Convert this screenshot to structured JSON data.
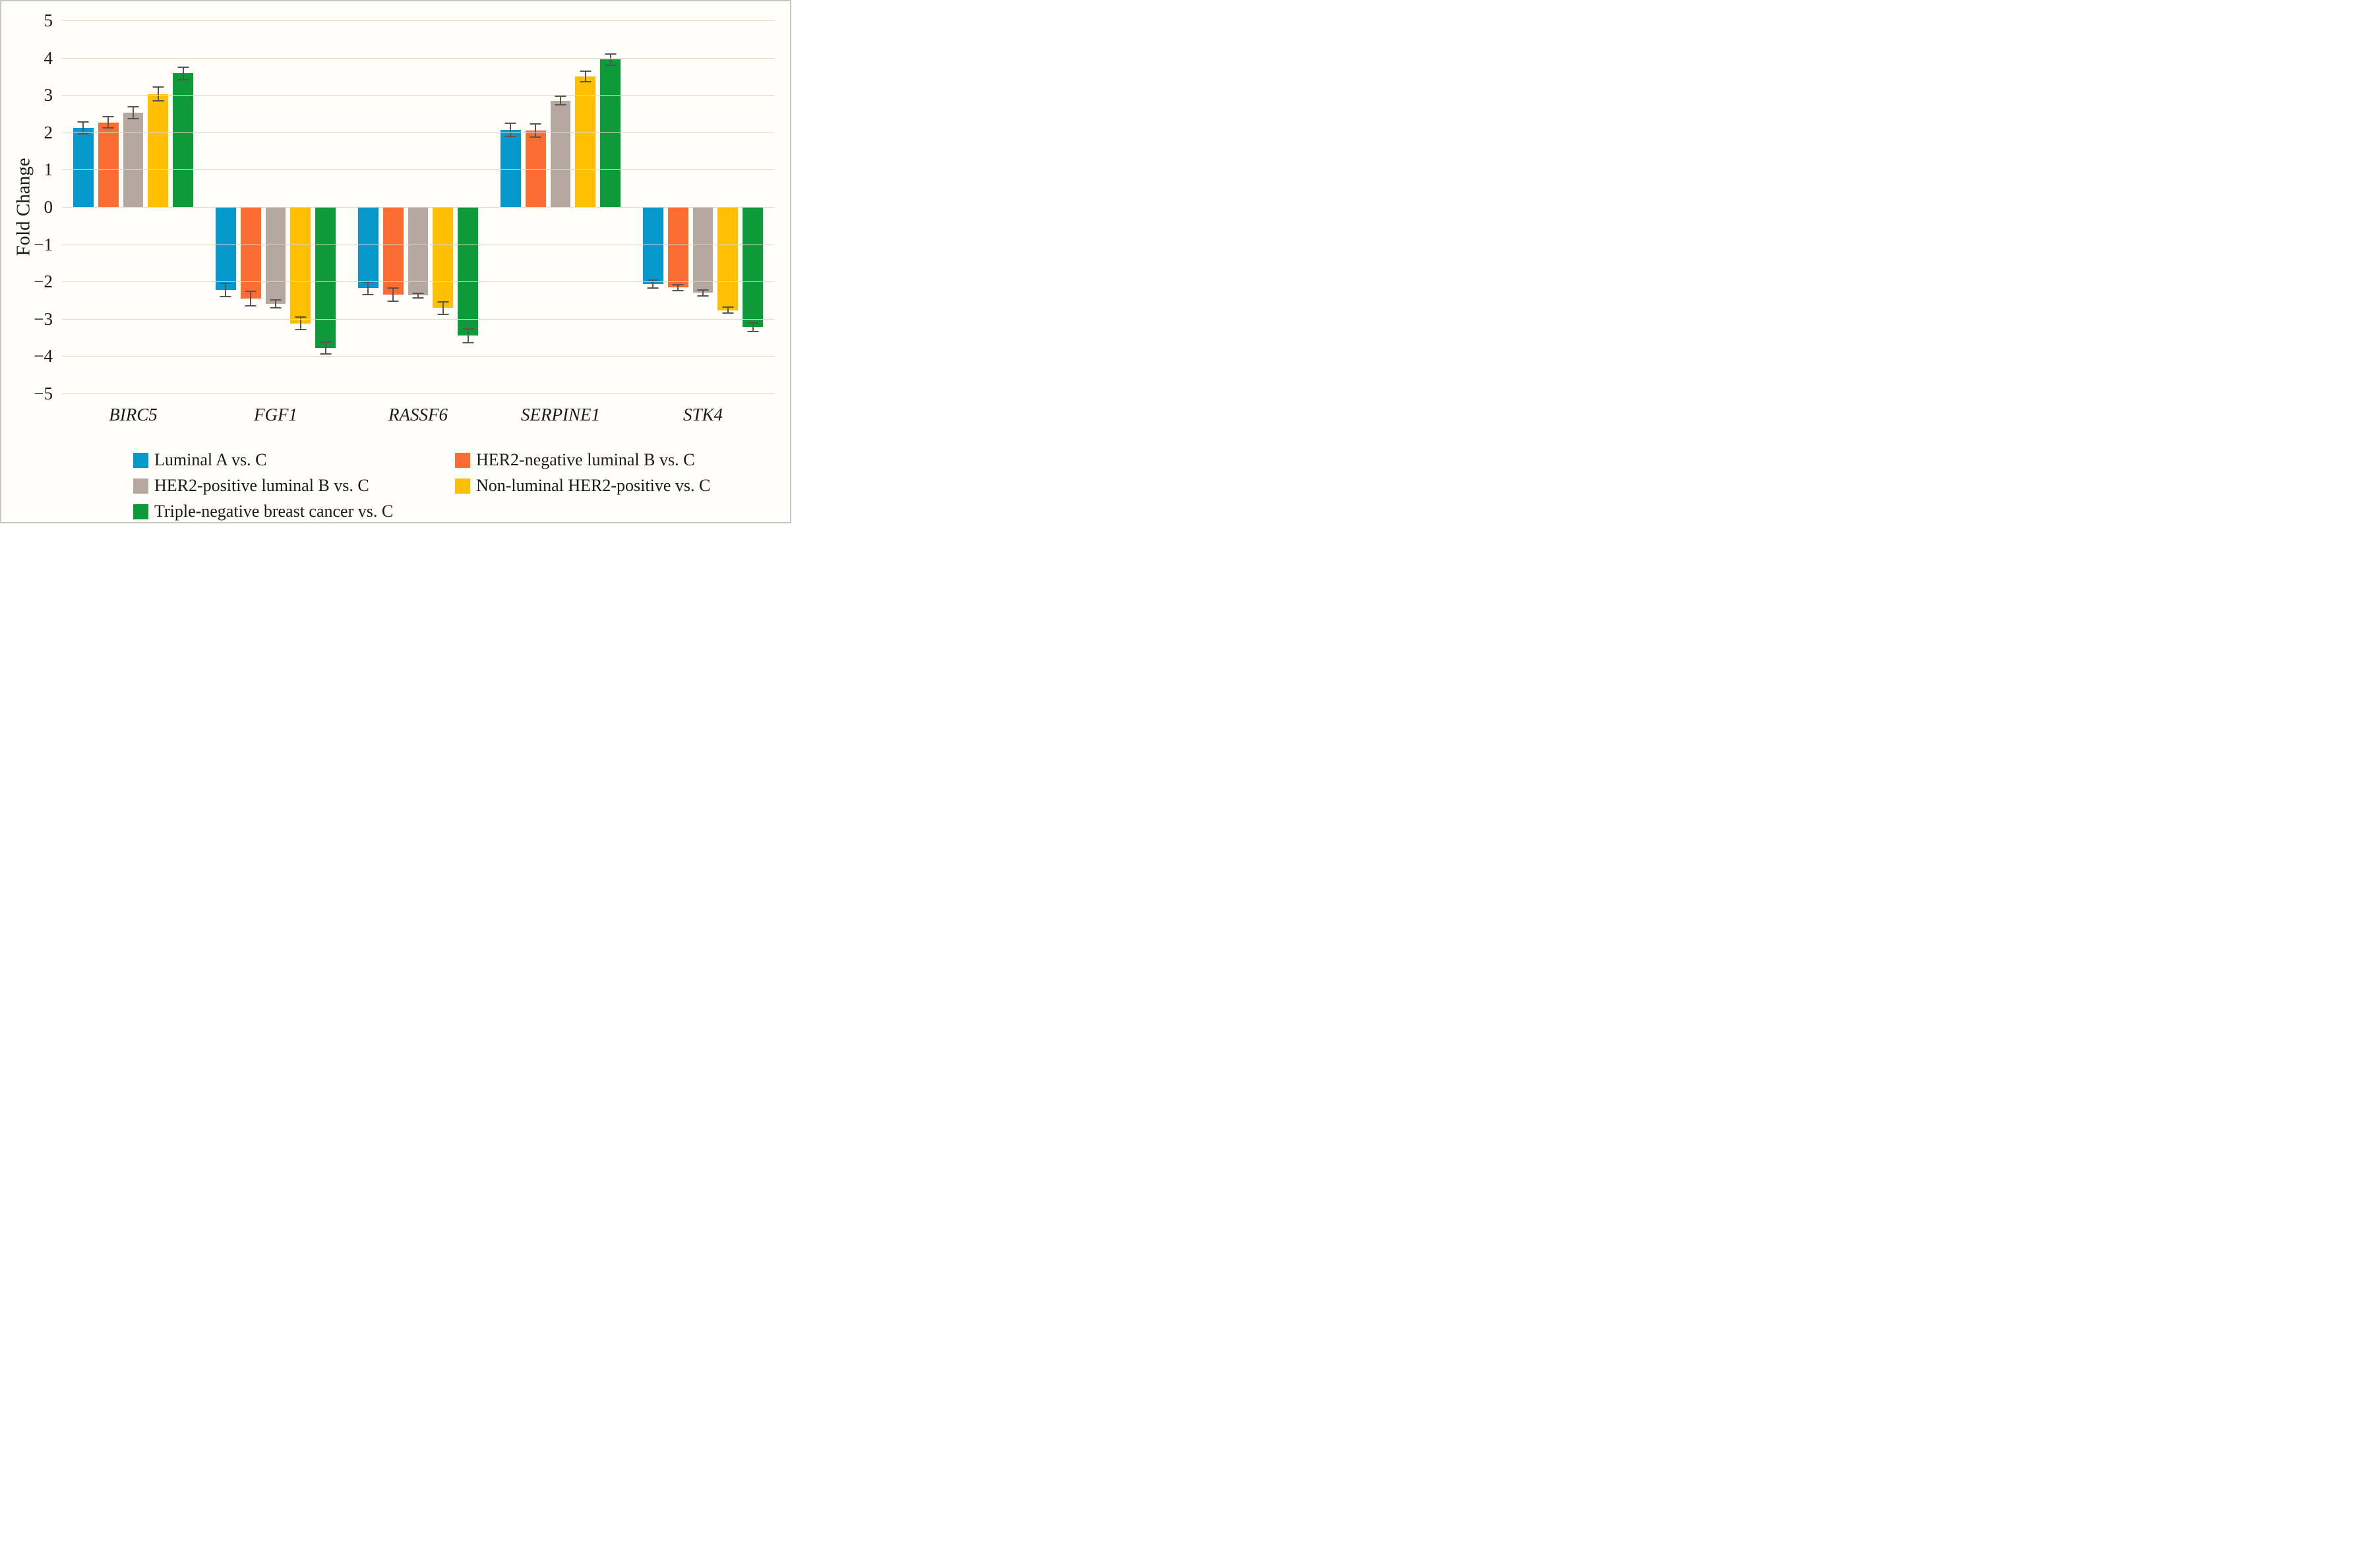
{
  "figure": {
    "y_axis_title": "Fold Change"
  },
  "chart_data": {
    "type": "bar",
    "title": "",
    "xlabel": "",
    "ylabel": "Fold Change",
    "ylim": [
      -5,
      5
    ],
    "yticks": [
      5,
      4,
      3,
      2,
      1,
      0,
      -1,
      -2,
      -3,
      -4,
      -5
    ],
    "ytick_labels": [
      "5",
      "4",
      "3",
      "2",
      "1",
      "0",
      "−1",
      "−2",
      "−3",
      "−4",
      "−5"
    ],
    "grid": true,
    "legend_position": "bottom",
    "categories": [
      "BIRC5",
      "FGF1",
      "RASSF6",
      "SERPINE1",
      "STK4"
    ],
    "series": [
      {
        "name": "Luminal A vs. C",
        "color": "#0598CB",
        "values": [
          2.12,
          -2.23,
          -2.18,
          2.07,
          -2.07
        ],
        "errors": [
          0.18,
          0.19,
          0.19,
          0.2,
          0.12
        ]
      },
      {
        "name": "HER2-negative luminal B vs. C",
        "color": "#FB6D33",
        "values": [
          2.27,
          -2.45,
          -2.35,
          2.05,
          -2.16
        ],
        "errors": [
          0.17,
          0.21,
          0.2,
          0.2,
          0.1
        ]
      },
      {
        "name": "HER2-positive luminal B vs. C",
        "color": "#B4A8A0",
        "values": [
          2.53,
          -2.6,
          -2.37,
          2.85,
          -2.3
        ],
        "errors": [
          0.18,
          0.12,
          0.08,
          0.13,
          0.1
        ]
      },
      {
        "name": "Non-luminal HER2-positive vs. C",
        "color": "#FFC003",
        "values": [
          3.03,
          -3.12,
          -2.71,
          3.5,
          -2.77
        ],
        "errors": [
          0.2,
          0.19,
          0.18,
          0.16,
          0.1
        ]
      },
      {
        "name": "Triple-negative breast cancer vs. C",
        "color": "#0D9A38",
        "values": [
          3.58,
          -3.78,
          -3.45,
          3.95,
          -3.22
        ],
        "errors": [
          0.19,
          0.17,
          0.2,
          0.17,
          0.13
        ]
      }
    ],
    "style": {
      "background": "#FFFEF8",
      "frame_border": "#C9C5C0",
      "gridline": "#DDD6D1",
      "error_bar": "#5A5550"
    }
  }
}
